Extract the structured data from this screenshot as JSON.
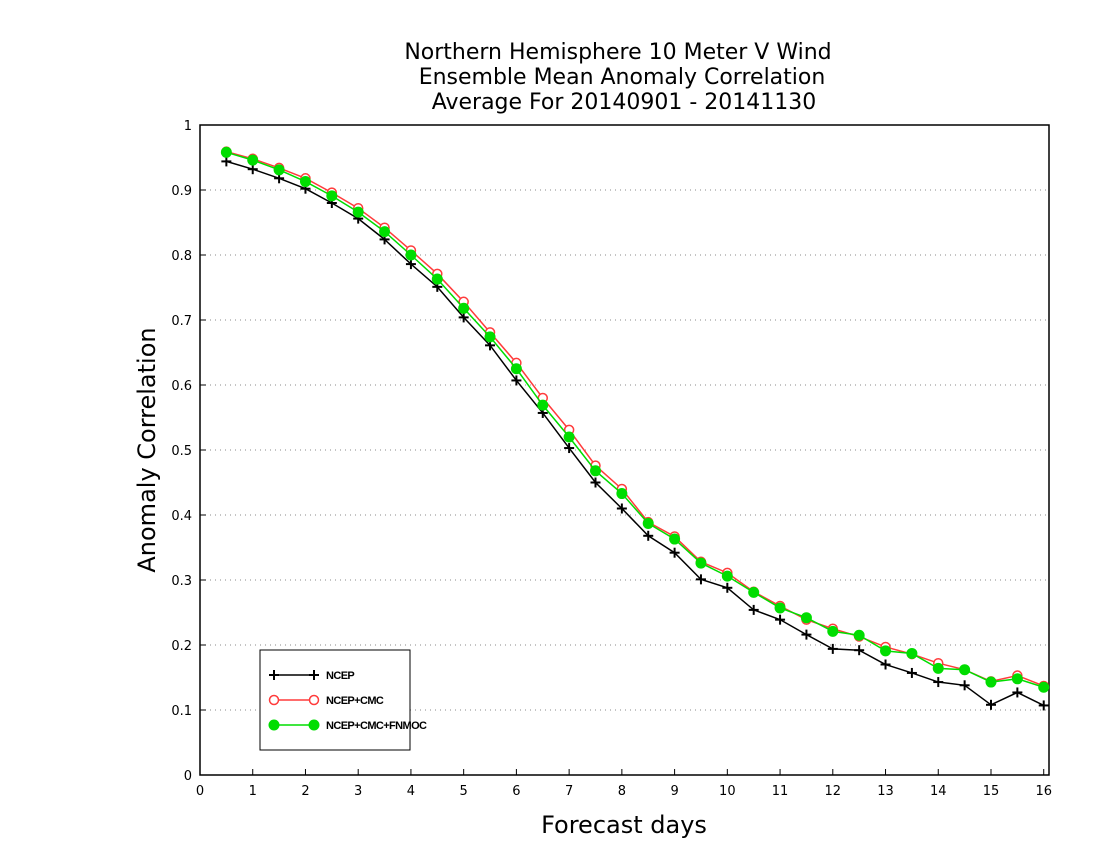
{
  "chart_data": {
    "type": "line",
    "title": [
      "Northern Hemisphere 10 Meter V Wind",
      "Ensemble Mean Anomaly Correlation",
      "Average For 20140901 - 20141130"
    ],
    "xlabel": "Forecast days",
    "ylabel": "Anomaly Correlation",
    "xlim": [
      0,
      16.1
    ],
    "ylim": [
      0,
      1
    ],
    "xticks": [
      "0",
      "1",
      "2",
      "3",
      "4",
      "5",
      "6",
      "7",
      "8",
      "9",
      "10",
      "11",
      "12",
      "13",
      "14",
      "15",
      "16"
    ],
    "yticks": [
      "0",
      "0.1",
      "0.2",
      "0.3",
      "0.4",
      "0.5",
      "0.6",
      "0.7",
      "0.8",
      "0.9",
      "1"
    ],
    "grid": "dotted horizontal",
    "legend_position": "bottom-left",
    "x": [
      0.5,
      1,
      1.5,
      2,
      2.5,
      3,
      3.5,
      4,
      4.5,
      5,
      5.5,
      6,
      6.5,
      7,
      7.5,
      8,
      8.5,
      9,
      9.5,
      10,
      10.5,
      11,
      11.5,
      12,
      12.5,
      13,
      13.5,
      14,
      14.5,
      15,
      15.5,
      16
    ],
    "series": [
      {
        "name": "NCEP",
        "color": "#000000",
        "marker": "plus",
        "values": [
          0.944,
          0.932,
          0.918,
          0.902,
          0.88,
          0.856,
          0.824,
          0.786,
          0.751,
          0.704,
          0.661,
          0.607,
          0.557,
          0.503,
          0.45,
          0.41,
          0.368,
          0.342,
          0.301,
          0.288,
          0.254,
          0.239,
          0.216,
          0.194,
          0.192,
          0.17,
          0.157,
          0.143,
          0.138,
          0.108,
          0.127,
          0.107
        ]
      },
      {
        "name": "NCEP+CMC",
        "color": "#ff3b3b",
        "marker": "open-circle",
        "values": [
          0.959,
          0.948,
          0.934,
          0.918,
          0.896,
          0.872,
          0.842,
          0.807,
          0.771,
          0.728,
          0.681,
          0.634,
          0.58,
          0.531,
          0.476,
          0.44,
          0.389,
          0.367,
          0.328,
          0.311,
          0.282,
          0.26,
          0.239,
          0.225,
          0.213,
          0.197,
          0.186,
          0.172,
          0.162,
          0.144,
          0.153,
          0.137
        ]
      },
      {
        "name": "NCEP+CMC+FNMOC",
        "color": "#00dd00",
        "marker": "filled-circle",
        "values": [
          0.958,
          0.946,
          0.931,
          0.913,
          0.891,
          0.866,
          0.836,
          0.8,
          0.763,
          0.718,
          0.674,
          0.625,
          0.569,
          0.52,
          0.468,
          0.433,
          0.387,
          0.363,
          0.326,
          0.306,
          0.281,
          0.257,
          0.242,
          0.221,
          0.215,
          0.191,
          0.187,
          0.164,
          0.162,
          0.143,
          0.148,
          0.135
        ]
      }
    ]
  }
}
